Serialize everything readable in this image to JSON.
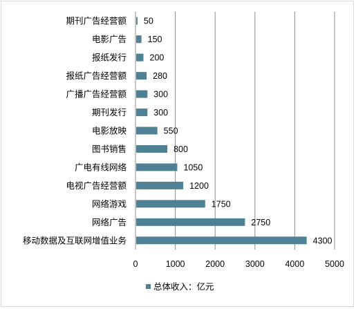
{
  "chart_data": {
    "type": "bar",
    "orientation": "horizontal",
    "categories": [
      "期刊广告经营额",
      "电影广告",
      "报纸发行",
      "报纸广告经营额",
      "广播广告经营额",
      "期刊发行",
      "电影放映",
      "图书销售",
      "广电有线网络",
      "电视广告经营额",
      "网络游戏",
      "网络广告",
      "移动数据及互联网增值业务"
    ],
    "series": [
      {
        "name": "总体收入：亿元",
        "values": [
          50,
          150,
          200,
          280,
          300,
          300,
          550,
          800,
          1050,
          1200,
          1750,
          2750,
          4300
        ],
        "color": "#4f8194"
      }
    ],
    "xlim": [
      0,
      5000
    ],
    "xticks": [
      0,
      1000,
      2000,
      3000,
      4000,
      5000
    ],
    "grid": "vertical",
    "data_labels": true,
    "legend": "bottom"
  }
}
